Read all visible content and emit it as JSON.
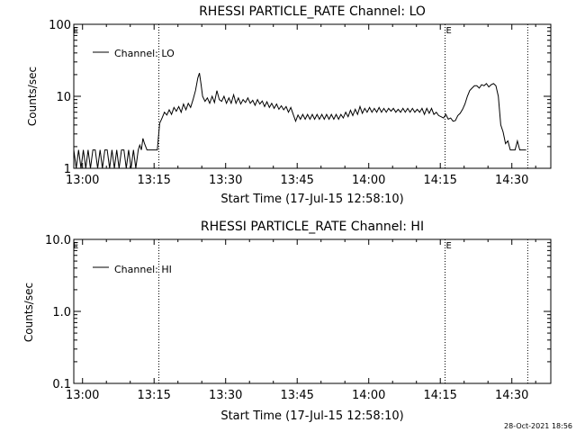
{
  "footer": {
    "timestamp": "28-Oct-2021 18:56"
  },
  "chart_data": [
    {
      "type": "line",
      "title": "RHESSI PARTICLE_RATE Channel: LO",
      "xlabel": "Start Time (17-Jul-15 12:58:10)",
      "ylabel": "Counts/sec",
      "yscale": "log",
      "xlim": [
        "12:58:10",
        "14:38:10"
      ],
      "ylim": [
        1,
        100
      ],
      "x_ticks": [
        "13:00",
        "13:15",
        "13:30",
        "13:45",
        "14:00",
        "14:15",
        "14:30"
      ],
      "y_ticks": [
        "1",
        "10",
        "100"
      ],
      "legend": {
        "position": "top-left",
        "entries": [
          "Channel: LO"
        ]
      },
      "markers": [
        {
          "time": "13:16:00",
          "label": ""
        },
        {
          "time": "14:16:00",
          "label": "E"
        },
        {
          "time": "14:33:20",
          "label": ""
        }
      ],
      "corner_label": "E",
      "series": [
        {
          "name": "Channel: LO",
          "points": [
            [
              "12:58:10",
              1.8
            ],
            [
              "12:58:40",
              1.0
            ],
            [
              "12:59:10",
              1.8
            ],
            [
              "12:59:40",
              1.0
            ],
            [
              "13:00:10",
              1.8
            ],
            [
              "13:00:40",
              1.0
            ],
            [
              "13:01:10",
              1.8
            ],
            [
              "13:01:40",
              1.0
            ],
            [
              "13:02:10",
              1.8
            ],
            [
              "13:02:40",
              1.8
            ],
            [
              "13:03:10",
              1.0
            ],
            [
              "13:03:40",
              1.8
            ],
            [
              "13:04:10",
              1.0
            ],
            [
              "13:04:40",
              1.8
            ],
            [
              "13:05:10",
              1.8
            ],
            [
              "13:05:40",
              1.0
            ],
            [
              "13:06:10",
              1.8
            ],
            [
              "13:06:40",
              1.0
            ],
            [
              "13:07:10",
              1.8
            ],
            [
              "13:07:40",
              1.0
            ],
            [
              "13:08:10",
              1.8
            ],
            [
              "13:08:40",
              1.8
            ],
            [
              "13:09:10",
              1.0
            ],
            [
              "13:09:40",
              1.8
            ],
            [
              "13:10:10",
              1.0
            ],
            [
              "13:10:40",
              1.8
            ],
            [
              "13:11:10",
              1.0
            ],
            [
              "13:11:40",
              1.8
            ],
            [
              "13:12:00",
              2.1
            ],
            [
              "13:12:20",
              1.8
            ],
            [
              "13:12:40",
              2.6
            ],
            [
              "13:13:00",
              2.2
            ],
            [
              "13:13:30",
              1.8
            ],
            [
              "13:14:00",
              1.8
            ],
            [
              "13:15:00",
              1.8
            ],
            [
              "13:15:40",
              1.8
            ],
            [
              "13:16:10",
              4.2
            ],
            [
              "13:16:40",
              5.0
            ],
            [
              "13:17:10",
              6.0
            ],
            [
              "13:17:40",
              5.5
            ],
            [
              "13:18:10",
              6.5
            ],
            [
              "13:18:40",
              5.6
            ],
            [
              "13:19:10",
              7.0
            ],
            [
              "13:19:40",
              6.2
            ],
            [
              "13:20:10",
              7.2
            ],
            [
              "13:20:40",
              6.0
            ],
            [
              "13:21:10",
              7.8
            ],
            [
              "13:21:40",
              6.5
            ],
            [
              "13:22:10",
              8.0
            ],
            [
              "13:22:40",
              7.0
            ],
            [
              "13:23:10",
              9.0
            ],
            [
              "13:23:40",
              12.0
            ],
            [
              "13:24:10",
              18.0
            ],
            [
              "13:24:30",
              21.0
            ],
            [
              "13:24:50",
              15.0
            ],
            [
              "13:25:10",
              10.0
            ],
            [
              "13:25:40",
              8.5
            ],
            [
              "13:26:10",
              9.5
            ],
            [
              "13:26:40",
              8.0
            ],
            [
              "13:27:10",
              10.0
            ],
            [
              "13:27:40",
              8.2
            ],
            [
              "13:28:10",
              12.0
            ],
            [
              "13:28:40",
              9.0
            ],
            [
              "13:29:10",
              8.5
            ],
            [
              "13:29:40",
              10.0
            ],
            [
              "13:30:10",
              8.0
            ],
            [
              "13:30:40",
              9.5
            ],
            [
              "13:31:10",
              8.0
            ],
            [
              "13:31:40",
              10.5
            ],
            [
              "13:32:10",
              8.0
            ],
            [
              "13:32:40",
              9.5
            ],
            [
              "13:33:10",
              7.8
            ],
            [
              "13:33:40",
              9.0
            ],
            [
              "13:34:10",
              8.2
            ],
            [
              "13:34:40",
              9.5
            ],
            [
              "13:35:10",
              8.0
            ],
            [
              "13:35:40",
              8.8
            ],
            [
              "13:36:10",
              7.5
            ],
            [
              "13:36:40",
              9.0
            ],
            [
              "13:37:10",
              7.8
            ],
            [
              "13:37:40",
              8.6
            ],
            [
              "13:38:10",
              7.2
            ],
            [
              "13:38:40",
              8.4
            ],
            [
              "13:39:10",
              7.0
            ],
            [
              "13:39:40",
              8.0
            ],
            [
              "13:40:10",
              6.8
            ],
            [
              "13:40:40",
              7.8
            ],
            [
              "13:41:10",
              6.6
            ],
            [
              "13:41:40",
              7.4
            ],
            [
              "13:42:10",
              6.5
            ],
            [
              "13:42:40",
              7.2
            ],
            [
              "13:43:10",
              6.0
            ],
            [
              "13:43:40",
              7.0
            ],
            [
              "13:44:10",
              5.6
            ],
            [
              "13:44:40",
              4.5
            ],
            [
              "13:45:10",
              5.5
            ],
            [
              "13:45:40",
              4.8
            ],
            [
              "13:46:10",
              5.6
            ],
            [
              "13:46:40",
              4.8
            ],
            [
              "13:47:10",
              5.6
            ],
            [
              "13:47:40",
              4.8
            ],
            [
              "13:48:10",
              5.6
            ],
            [
              "13:48:40",
              4.8
            ],
            [
              "13:49:10",
              5.6
            ],
            [
              "13:49:40",
              4.8
            ],
            [
              "13:50:10",
              5.6
            ],
            [
              "13:50:40",
              4.8
            ],
            [
              "13:51:10",
              5.6
            ],
            [
              "13:51:40",
              4.8
            ],
            [
              "13:52:10",
              5.6
            ],
            [
              "13:52:40",
              4.8
            ],
            [
              "13:53:10",
              5.6
            ],
            [
              "13:53:40",
              4.8
            ],
            [
              "13:54:10",
              5.6
            ],
            [
              "13:54:40",
              5.0
            ],
            [
              "13:55:10",
              6.0
            ],
            [
              "13:55:40",
              5.2
            ],
            [
              "13:56:10",
              6.4
            ],
            [
              "13:56:40",
              5.4
            ],
            [
              "13:57:10",
              6.6
            ],
            [
              "13:57:40",
              5.6
            ],
            [
              "13:58:10",
              7.2
            ],
            [
              "13:58:40",
              5.8
            ],
            [
              "13:59:10",
              6.8
            ],
            [
              "13:59:40",
              6.0
            ],
            [
              "14:00:10",
              7.0
            ],
            [
              "14:00:40",
              6.0
            ],
            [
              "14:01:10",
              6.8
            ],
            [
              "14:01:40",
              6.0
            ],
            [
              "14:02:10",
              7.0
            ],
            [
              "14:02:40",
              6.0
            ],
            [
              "14:03:10",
              6.8
            ],
            [
              "14:03:40",
              6.0
            ],
            [
              "14:04:10",
              6.8
            ],
            [
              "14:04:40",
              6.2
            ],
            [
              "14:05:10",
              6.8
            ],
            [
              "14:05:40",
              6.0
            ],
            [
              "14:06:10",
              6.6
            ],
            [
              "14:06:40",
              6.0
            ],
            [
              "14:07:10",
              6.8
            ],
            [
              "14:07:40",
              6.0
            ],
            [
              "14:08:10",
              6.8
            ],
            [
              "14:08:40",
              6.0
            ],
            [
              "14:09:10",
              6.8
            ],
            [
              "14:09:40",
              6.0
            ],
            [
              "14:10:10",
              6.6
            ],
            [
              "14:10:40",
              6.0
            ],
            [
              "14:11:10",
              6.8
            ],
            [
              "14:11:40",
              5.6
            ],
            [
              "14:12:10",
              6.8
            ],
            [
              "14:12:40",
              5.8
            ],
            [
              "14:13:10",
              6.8
            ],
            [
              "14:13:40",
              5.6
            ],
            [
              "14:14:10",
              6.0
            ],
            [
              "14:14:40",
              5.4
            ],
            [
              "14:15:10",
              5.2
            ],
            [
              "14:15:40",
              5.0
            ],
            [
              "14:16:10",
              5.6
            ],
            [
              "14:16:40",
              4.8
            ],
            [
              "14:17:10",
              5.0
            ],
            [
              "14:17:40",
              4.5
            ],
            [
              "14:18:10",
              4.6
            ],
            [
              "14:18:40",
              5.4
            ],
            [
              "14:19:10",
              5.8
            ],
            [
              "14:19:40",
              6.6
            ],
            [
              "14:20:10",
              7.8
            ],
            [
              "14:20:40",
              10.0
            ],
            [
              "14:21:10",
              12.0
            ],
            [
              "14:21:40",
              13.0
            ],
            [
              "14:22:10",
              14.0
            ],
            [
              "14:22:40",
              14.0
            ],
            [
              "14:23:10",
              13.0
            ],
            [
              "14:23:40",
              14.5
            ],
            [
              "14:24:10",
              14.0
            ],
            [
              "14:24:40",
              15.0
            ],
            [
              "14:25:10",
              13.5
            ],
            [
              "14:25:40",
              14.5
            ],
            [
              "14:26:10",
              15.0
            ],
            [
              "14:26:40",
              14.0
            ],
            [
              "14:27:10",
              10.0
            ],
            [
              "14:27:40",
              4.0
            ],
            [
              "14:28:10",
              3.2
            ],
            [
              "14:28:40",
              2.2
            ],
            [
              "14:29:10",
              2.4
            ],
            [
              "14:29:40",
              1.8
            ],
            [
              "14:30:10",
              1.8
            ],
            [
              "14:30:40",
              1.8
            ],
            [
              "14:31:10",
              2.4
            ],
            [
              "14:31:40",
              1.8
            ],
            [
              "14:32:10",
              1.8
            ],
            [
              "14:33:00",
              1.8
            ]
          ]
        }
      ]
    },
    {
      "type": "line",
      "title": "RHESSI PARTICLE_RATE Channel: HI",
      "xlabel": "Start Time (17-Jul-15 12:58:10)",
      "ylabel": "Counts/sec",
      "yscale": "log",
      "xlim": [
        "12:58:10",
        "14:38:10"
      ],
      "ylim": [
        0.1,
        10
      ],
      "x_ticks": [
        "13:00",
        "13:15",
        "13:30",
        "13:45",
        "14:00",
        "14:15",
        "14:30"
      ],
      "y_ticks": [
        "0.1",
        "1.0",
        "10.0"
      ],
      "legend": {
        "position": "top-left",
        "entries": [
          "Channel: HI"
        ]
      },
      "markers": [
        {
          "time": "13:16:00",
          "label": ""
        },
        {
          "time": "14:16:00",
          "label": "E"
        },
        {
          "time": "14:33:20",
          "label": ""
        }
      ],
      "corner_label": "E",
      "series": [
        {
          "name": "Channel: HI",
          "points": []
        }
      ]
    }
  ]
}
